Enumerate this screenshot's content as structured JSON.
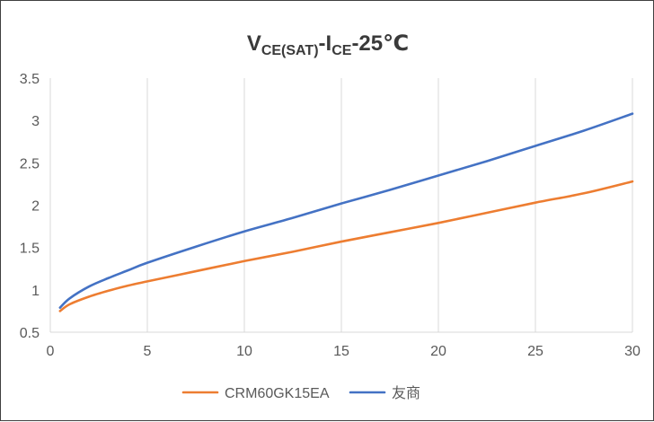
{
  "chart_data": {
    "type": "line",
    "title": {
      "v": "V",
      "v_sub": "CE(SAT)",
      "dash": "-",
      "i": "I",
      "i_sub": "CE",
      "suffix": "-25℃"
    },
    "xlabel": "",
    "ylabel": "",
    "xlim": [
      0,
      30
    ],
    "ylim": [
      0.5,
      3.5
    ],
    "xticks": [
      0,
      5,
      10,
      15,
      20,
      25,
      30
    ],
    "yticks": [
      0.5,
      1,
      1.5,
      2,
      2.5,
      3,
      3.5
    ],
    "xtick_labels": [
      "0",
      "5",
      "10",
      "15",
      "20",
      "25",
      "30"
    ],
    "ytick_labels": [
      "0.5",
      "1",
      "1.5",
      "2",
      "2.5",
      "3",
      "3.5"
    ],
    "grid": "vertical",
    "legend_position": "bottom",
    "series": [
      {
        "name": "CRM60GK15EA",
        "color": "#ED7D31",
        "x": [
          0.5,
          1,
          2,
          3,
          4,
          5,
          7.5,
          10,
          12.5,
          15,
          17.5,
          20,
          22.5,
          25,
          27.5,
          30
        ],
        "y": [
          0.75,
          0.83,
          0.92,
          0.99,
          1.05,
          1.1,
          1.22,
          1.34,
          1.45,
          1.57,
          1.68,
          1.79,
          1.91,
          2.03,
          2.14,
          2.28
        ]
      },
      {
        "name": "友商",
        "color": "#4472C4",
        "x": [
          0.5,
          1,
          2,
          3,
          4,
          5,
          7.5,
          10,
          12.5,
          15,
          17.5,
          20,
          22.5,
          25,
          27.5,
          30
        ],
        "y": [
          0.79,
          0.9,
          1.04,
          1.14,
          1.23,
          1.32,
          1.51,
          1.69,
          1.85,
          2.02,
          2.18,
          2.35,
          2.52,
          2.7,
          2.88,
          3.08
        ]
      }
    ]
  }
}
